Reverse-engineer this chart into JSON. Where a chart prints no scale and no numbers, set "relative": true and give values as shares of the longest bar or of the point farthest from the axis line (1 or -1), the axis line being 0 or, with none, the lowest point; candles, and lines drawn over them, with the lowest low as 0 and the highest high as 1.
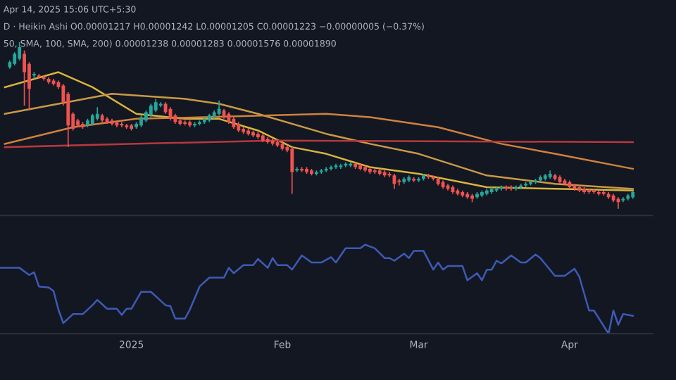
{
  "chart_data": [
    {
      "type": "candlestick",
      "relative": true,
      "tick_labels": false,
      "xlim": [
        "2024-12-05",
        "2025-04-18"
      ],
      "xticks": [
        {
          "value": "2025-01-01",
          "label": null
        },
        {
          "value": "2025-02-01",
          "label": null
        },
        {
          "value": "2025-03-01",
          "label": null
        },
        {
          "value": "2025-04-01",
          "label": null
        }
      ],
      "annotations": [
        "Apr 14, 2025 15:06 UTC+5:30",
        "D · Heikin Ashi O0.00001217 H0.00001242 L0.00001205 C0.00001223 −0.00000005 (−0.37%)",
        "50, SMA, 100, SMA, 200) 0.00001238 0.00001283 0.00001576 0.00001890"
      ],
      "x": [
        "2024-12-07",
        "2024-12-08",
        "2024-12-09",
        "2024-12-10",
        "2024-12-11",
        "2024-12-12",
        "2024-12-13",
        "2024-12-14",
        "2024-12-15",
        "2024-12-16",
        "2024-12-17",
        "2024-12-18",
        "2024-12-19",
        "2024-12-20",
        "2024-12-21",
        "2024-12-22",
        "2024-12-23",
        "2024-12-24",
        "2024-12-25",
        "2024-12-26",
        "2024-12-27",
        "2024-12-28",
        "2024-12-29",
        "2024-12-30",
        "2024-12-31",
        "2025-01-01",
        "2025-01-02",
        "2025-01-03",
        "2025-01-04",
        "2025-01-05",
        "2025-01-06",
        "2025-01-07",
        "2025-01-08",
        "2025-01-09",
        "2025-01-10",
        "2025-01-11",
        "2025-01-12",
        "2025-01-13",
        "2025-01-14",
        "2025-01-15",
        "2025-01-16",
        "2025-01-17",
        "2025-01-18",
        "2025-01-19",
        "2025-01-20",
        "2025-01-21",
        "2025-01-22",
        "2025-01-23",
        "2025-01-24",
        "2025-01-25",
        "2025-01-26",
        "2025-01-27",
        "2025-01-28",
        "2025-01-29",
        "2025-01-30",
        "2025-01-31",
        "2025-02-01",
        "2025-02-02",
        "2025-02-03",
        "2025-02-04",
        "2025-02-05",
        "2025-02-06",
        "2025-02-07",
        "2025-02-08",
        "2025-02-09",
        "2025-02-10",
        "2025-02-11",
        "2025-02-12",
        "2025-02-13",
        "2025-02-14",
        "2025-02-15",
        "2025-02-16",
        "2025-02-17",
        "2025-02-18",
        "2025-02-19",
        "2025-02-20",
        "2025-02-21",
        "2025-02-22",
        "2025-02-23",
        "2025-02-24",
        "2025-02-25",
        "2025-02-26",
        "2025-02-27",
        "2025-02-28",
        "2025-03-01",
        "2025-03-02",
        "2025-03-03",
        "2025-03-04",
        "2025-03-05",
        "2025-03-06",
        "2025-03-07",
        "2025-03-08",
        "2025-03-09",
        "2025-03-10",
        "2025-03-11",
        "2025-03-12",
        "2025-03-13",
        "2025-03-14",
        "2025-03-15",
        "2025-03-16",
        "2025-03-17",
        "2025-03-18",
        "2025-03-19",
        "2025-03-20",
        "2025-03-21",
        "2025-03-22",
        "2025-03-23",
        "2025-03-24",
        "2025-03-25",
        "2025-03-26",
        "2025-03-27",
        "2025-03-28",
        "2025-03-29",
        "2025-03-30",
        "2025-03-31",
        "2025-04-01",
        "2025-04-02",
        "2025-04-03",
        "2025-04-04",
        "2025-04-05",
        "2025-04-06",
        "2025-04-07",
        "2025-04-08",
        "2025-04-09",
        "2025-04-10",
        "2025-04-11",
        "2025-04-12",
        "2025-04-13",
        "2025-04-14"
      ],
      "ohlc": [
        [
          0.85,
          0.89,
          0.84,
          0.88
        ],
        [
          0.87,
          0.94,
          0.86,
          0.93
        ],
        [
          0.9,
          1,
          0.89,
          0.97
        ],
        [
          0.93,
          0.95,
          0.62,
          0.82
        ],
        [
          0.87,
          0.88,
          0.59,
          0.72
        ],
        [
          0.8,
          0.82,
          0.78,
          0.81
        ],
        [
          0.8,
          0.81,
          0.78,
          0.79
        ],
        [
          0.79,
          0.8,
          0.77,
          0.78
        ],
        [
          0.78,
          0.79,
          0.75,
          0.76
        ],
        [
          0.77,
          0.78,
          0.74,
          0.75
        ],
        [
          0.76,
          0.77,
          0.72,
          0.73
        ],
        [
          0.74,
          0.75,
          0.62,
          0.64
        ],
        [
          0.69,
          0.7,
          0.37,
          0.5
        ],
        [
          0.57,
          0.58,
          0.47,
          0.48
        ],
        [
          0.53,
          0.54,
          0.49,
          0.5
        ],
        [
          0.51,
          0.52,
          0.48,
          0.49
        ],
        [
          0.5,
          0.54,
          0.49,
          0.53
        ],
        [
          0.51,
          0.57,
          0.5,
          0.56
        ],
        [
          0.54,
          0.61,
          0.53,
          0.57
        ],
        [
          0.56,
          0.57,
          0.52,
          0.53
        ],
        [
          0.54,
          0.55,
          0.51,
          0.52
        ],
        [
          0.53,
          0.54,
          0.5,
          0.51
        ],
        [
          0.52,
          0.53,
          0.49,
          0.5
        ],
        [
          0.51,
          0.52,
          0.49,
          0.5
        ],
        [
          0.5,
          0.51,
          0.48,
          0.49
        ],
        [
          0.5,
          0.51,
          0.47,
          0.48
        ],
        [
          0.49,
          0.52,
          0.48,
          0.51
        ],
        [
          0.5,
          0.56,
          0.49,
          0.55
        ],
        [
          0.53,
          0.59,
          0.52,
          0.58
        ],
        [
          0.56,
          0.63,
          0.55,
          0.62
        ],
        [
          0.59,
          0.66,
          0.58,
          0.64
        ],
        [
          0.62,
          0.64,
          0.61,
          0.63
        ],
        [
          0.63,
          0.64,
          0.57,
          0.58
        ],
        [
          0.6,
          0.61,
          0.53,
          0.54
        ],
        [
          0.56,
          0.57,
          0.51,
          0.52
        ],
        [
          0.53,
          0.54,
          0.5,
          0.51
        ],
        [
          0.52,
          0.53,
          0.5,
          0.51
        ],
        [
          0.52,
          0.53,
          0.49,
          0.5
        ],
        [
          0.5,
          0.52,
          0.49,
          0.51
        ],
        [
          0.51,
          0.53,
          0.5,
          0.52
        ],
        [
          0.52,
          0.55,
          0.51,
          0.54
        ],
        [
          0.53,
          0.57,
          0.52,
          0.56
        ],
        [
          0.55,
          0.59,
          0.54,
          0.58
        ],
        [
          0.57,
          0.65,
          0.56,
          0.6
        ],
        [
          0.59,
          0.6,
          0.54,
          0.55
        ],
        [
          0.57,
          0.58,
          0.51,
          0.52
        ],
        [
          0.54,
          0.55,
          0.48,
          0.49
        ],
        [
          0.51,
          0.52,
          0.46,
          0.47
        ],
        [
          0.48,
          0.49,
          0.45,
          0.46
        ],
        [
          0.47,
          0.48,
          0.44,
          0.45
        ],
        [
          0.46,
          0.47,
          0.43,
          0.44
        ],
        [
          0.45,
          0.46,
          0.42,
          0.43
        ],
        [
          0.44,
          0.45,
          0.4,
          0.41
        ],
        [
          0.42,
          0.43,
          0.39,
          0.4
        ],
        [
          0.41,
          0.42,
          0.38,
          0.39
        ],
        [
          0.4,
          0.41,
          0.37,
          0.38
        ],
        [
          0.39,
          0.4,
          0.35,
          0.36
        ],
        [
          0.37,
          0.38,
          0.34,
          0.35
        ],
        [
          0.36,
          0.37,
          0.09,
          0.22
        ],
        [
          0.23,
          0.25,
          0.22,
          0.24
        ],
        [
          0.24,
          0.25,
          0.22,
          0.23
        ],
        [
          0.24,
          0.25,
          0.21,
          0.22
        ],
        [
          0.23,
          0.24,
          0.2,
          0.21
        ],
        [
          0.21,
          0.23,
          0.2,
          0.22
        ],
        [
          0.22,
          0.24,
          0.21,
          0.23
        ],
        [
          0.23,
          0.25,
          0.22,
          0.24
        ],
        [
          0.24,
          0.26,
          0.23,
          0.25
        ],
        [
          0.25,
          0.27,
          0.24,
          0.26
        ],
        [
          0.25,
          0.27,
          0.24,
          0.26
        ],
        [
          0.26,
          0.28,
          0.25,
          0.27
        ],
        [
          0.26,
          0.28,
          0.25,
          0.27
        ],
        [
          0.27,
          0.28,
          0.24,
          0.25
        ],
        [
          0.26,
          0.27,
          0.23,
          0.24
        ],
        [
          0.25,
          0.26,
          0.22,
          0.23
        ],
        [
          0.24,
          0.25,
          0.21,
          0.22
        ],
        [
          0.23,
          0.24,
          0.21,
          0.22
        ],
        [
          0.23,
          0.24,
          0.2,
          0.21
        ],
        [
          0.22,
          0.23,
          0.19,
          0.2
        ],
        [
          0.21,
          0.22,
          0.19,
          0.2
        ],
        [
          0.2,
          0.21,
          0.12,
          0.15
        ],
        [
          0.17,
          0.18,
          0.14,
          0.16
        ],
        [
          0.16,
          0.19,
          0.15,
          0.18
        ],
        [
          0.17,
          0.2,
          0.16,
          0.19
        ],
        [
          0.18,
          0.19,
          0.16,
          0.17
        ],
        [
          0.17,
          0.19,
          0.16,
          0.18
        ],
        [
          0.18,
          0.21,
          0.17,
          0.2
        ],
        [
          0.2,
          0.21,
          0.18,
          0.19
        ],
        [
          0.19,
          0.2,
          0.17,
          0.18
        ],
        [
          0.18,
          0.19,
          0.14,
          0.15
        ],
        [
          0.16,
          0.17,
          0.12,
          0.13
        ],
        [
          0.14,
          0.15,
          0.11,
          0.12
        ],
        [
          0.13,
          0.14,
          0.09,
          0.1
        ],
        [
          0.11,
          0.12,
          0.08,
          0.09
        ],
        [
          0.1,
          0.11,
          0.07,
          0.08
        ],
        [
          0.09,
          0.1,
          0.06,
          0.07
        ],
        [
          0.08,
          0.09,
          0.04,
          0.06
        ],
        [
          0.07,
          0.1,
          0.06,
          0.09
        ],
        [
          0.08,
          0.11,
          0.07,
          0.1
        ],
        [
          0.09,
          0.12,
          0.08,
          0.11
        ],
        [
          0.1,
          0.13,
          0.09,
          0.12
        ],
        [
          0.11,
          0.13,
          0.1,
          0.12
        ],
        [
          0.12,
          0.14,
          0.11,
          0.13
        ],
        [
          0.13,
          0.14,
          0.11,
          0.12
        ],
        [
          0.13,
          0.14,
          0.11,
          0.12
        ],
        [
          0.12,
          0.14,
          0.11,
          0.13
        ],
        [
          0.13,
          0.15,
          0.12,
          0.14
        ],
        [
          0.14,
          0.16,
          0.13,
          0.15
        ],
        [
          0.15,
          0.17,
          0.14,
          0.16
        ],
        [
          0.16,
          0.18,
          0.15,
          0.17
        ],
        [
          0.17,
          0.2,
          0.16,
          0.19
        ],
        [
          0.18,
          0.21,
          0.17,
          0.2
        ],
        [
          0.19,
          0.23,
          0.18,
          0.21
        ],
        [
          0.2,
          0.21,
          0.17,
          0.18
        ],
        [
          0.19,
          0.2,
          0.15,
          0.16
        ],
        [
          0.17,
          0.18,
          0.14,
          0.15
        ],
        [
          0.16,
          0.17,
          0.12,
          0.13
        ],
        [
          0.14,
          0.15,
          0.11,
          0.12
        ],
        [
          0.13,
          0.14,
          0.1,
          0.11
        ],
        [
          0.12,
          0.13,
          0.09,
          0.1
        ],
        [
          0.11,
          0.12,
          0.09,
          0.1
        ],
        [
          0.11,
          0.12,
          0.09,
          0.1
        ],
        [
          0.1,
          0.11,
          0.08,
          0.09
        ],
        [
          0.1,
          0.11,
          0.08,
          0.09
        ],
        [
          0.09,
          0.1,
          0.06,
          0.07
        ],
        [
          0.08,
          0.09,
          0.04,
          0.05
        ],
        [
          0.06,
          0.07,
          0,
          0.04
        ],
        [
          0.05,
          0.07,
          0.04,
          0.06
        ],
        [
          0.06,
          0.09,
          0.05,
          0.08
        ],
        [
          0.07,
          0.11,
          0.06,
          0.1
        ]
      ],
      "series": [
        {
          "type": "line",
          "color": "#d8b53c",
          "x": [
            "2024-12-06",
            "2024-12-17",
            "2024-12-24",
            "2025-01-02",
            "2025-01-12",
            "2025-01-19",
            "2025-01-27",
            "2025-02-03",
            "2025-02-10",
            "2025-02-19",
            "2025-03-01",
            "2025-03-15",
            "2025-03-29",
            "2025-04-14"
          ],
          "values": [
            0.73,
            0.82,
            0.73,
            0.57,
            0.54,
            0.54,
            0.47,
            0.37,
            0.33,
            0.25,
            0.21,
            0.13,
            0.12,
            0.11
          ]
        },
        {
          "type": "line",
          "color": "#c99a45",
          "x": [
            "2024-12-06",
            "2024-12-28",
            "2025-01-12",
            "2025-01-19",
            "2025-01-27",
            "2025-02-10",
            "2025-02-19",
            "2025-03-01",
            "2025-03-15",
            "2025-03-29",
            "2025-04-14"
          ],
          "values": [
            0.57,
            0.69,
            0.66,
            0.63,
            0.57,
            0.45,
            0.39,
            0.33,
            0.2,
            0.15,
            0.12
          ]
        },
        {
          "type": "line",
          "color": "#d0823e",
          "x": [
            "2024-12-06",
            "2024-12-20",
            "2025-01-02",
            "2025-01-16",
            "2025-02-10",
            "2025-02-19",
            "2025-03-05",
            "2025-03-18",
            "2025-03-29",
            "2025-04-14"
          ],
          "values": [
            0.39,
            0.49,
            0.54,
            0.55,
            0.57,
            0.55,
            0.49,
            0.39,
            0.33,
            0.24
          ]
        },
        {
          "type": "line",
          "color": "#b5393c",
          "x": [
            "2024-12-06",
            "2025-01-02",
            "2025-01-30",
            "2025-04-14"
          ],
          "values": [
            0.37,
            0.39,
            0.41,
            0.4
          ]
        }
      ]
    },
    {
      "type": "line",
      "relative": true,
      "tick_labels": "x",
      "xlim": [
        "2024-12-05",
        "2025-04-18"
      ],
      "xticks": [
        {
          "value": "2025-01-01",
          "label": "2025"
        },
        {
          "value": "2025-02-01",
          "label": "Feb"
        },
        {
          "value": "2025-03-01",
          "label": "Mar"
        },
        {
          "value": "2025-04-01",
          "label": "Apr"
        }
      ],
      "series": [
        {
          "color": "#3d5bb5",
          "x": [
            "2024-12-05",
            "2024-12-09",
            "2024-12-11",
            "2024-12-12",
            "2024-12-13",
            "2024-12-15",
            "2024-12-16",
            "2024-12-17",
            "2024-12-18",
            "2024-12-20",
            "2024-12-22",
            "2024-12-24",
            "2024-12-25",
            "2024-12-27",
            "2024-12-29",
            "2024-12-30",
            "2024-12-31",
            "2025-01-01",
            "2025-01-03",
            "2025-01-05",
            "2025-01-07",
            "2025-01-08",
            "2025-01-09",
            "2025-01-10",
            "2025-01-12",
            "2025-01-13",
            "2025-01-15",
            "2025-01-17",
            "2025-01-20",
            "2025-01-21",
            "2025-01-22",
            "2025-01-24",
            "2025-01-26",
            "2025-01-27",
            "2025-01-29",
            "2025-01-30",
            "2025-01-31",
            "2025-02-02",
            "2025-02-03",
            "2025-02-05",
            "2025-02-07",
            "2025-02-09",
            "2025-02-11",
            "2025-02-12",
            "2025-02-14",
            "2025-02-17",
            "2025-02-18",
            "2025-02-20",
            "2025-02-22",
            "2025-02-23",
            "2025-02-24",
            "2025-02-26",
            "2025-02-27",
            "2025-02-28",
            "2025-03-02",
            "2025-03-04",
            "2025-03-05",
            "2025-03-06",
            "2025-03-07",
            "2025-03-10",
            "2025-03-11",
            "2025-03-13",
            "2025-03-14",
            "2025-03-15",
            "2025-03-16",
            "2025-03-17",
            "2025-03-18",
            "2025-03-20",
            "2025-03-22",
            "2025-03-23",
            "2025-03-25",
            "2025-03-26",
            "2025-03-29",
            "2025-03-31",
            "2025-04-02",
            "2025-04-03",
            "2025-04-05",
            "2025-04-06",
            "2025-04-09",
            "2025-04-10",
            "2025-04-11",
            "2025-04-12",
            "2025-04-14"
          ],
          "values": [
            0.74,
            0.74,
            0.66,
            0.69,
            0.53,
            0.52,
            0.48,
            0.27,
            0.12,
            0.22,
            0.22,
            0.32,
            0.38,
            0.28,
            0.28,
            0.21,
            0.28,
            0.28,
            0.47,
            0.47,
            0.37,
            0.32,
            0.31,
            0.17,
            0.17,
            0.27,
            0.53,
            0.63,
            0.63,
            0.74,
            0.68,
            0.77,
            0.77,
            0.84,
            0.74,
            0.85,
            0.77,
            0.77,
            0.72,
            0.88,
            0.8,
            0.8,
            0.86,
            0.8,
            0.96,
            0.96,
            1,
            0.96,
            0.85,
            0.85,
            0.82,
            0.9,
            0.85,
            0.93,
            0.93,
            0.72,
            0.8,
            0.72,
            0.76,
            0.76,
            0.6,
            0.68,
            0.6,
            0.72,
            0.72,
            0.82,
            0.79,
            0.88,
            0.8,
            0.8,
            0.89,
            0.85,
            0.65,
            0.65,
            0.73,
            0.64,
            0.26,
            0.26,
            0,
            0.26,
            0.1,
            0.22,
            0.2
          ]
        }
      ]
    }
  ]
}
